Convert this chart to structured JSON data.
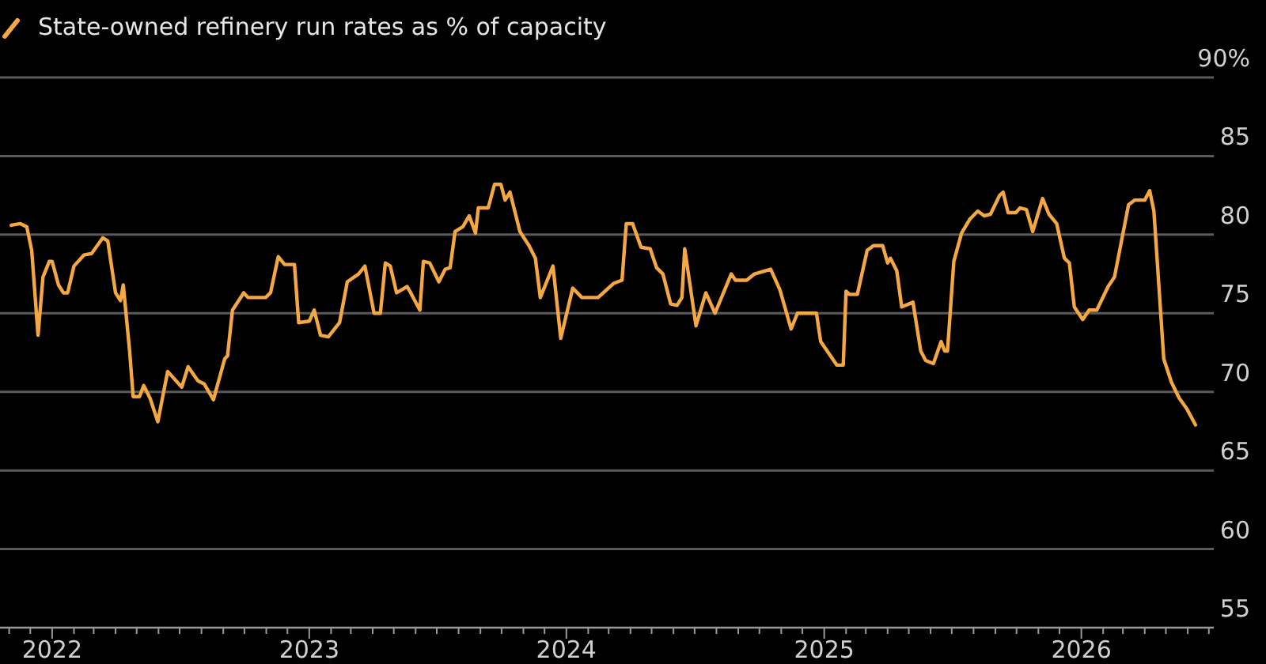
{
  "chart_data": {
    "type": "line",
    "legend": "top left",
    "grid": "y",
    "ylim": [
      55,
      90
    ],
    "yticks": [
      55,
      60,
      65,
      70,
      75,
      80,
      85,
      {
        "value": 90,
        "label": "90%"
      }
    ],
    "xlim": [
      "2021-10-19",
      "2026-07-08"
    ],
    "xticks": [
      {
        "value": "2021-11-01",
        "label": null
      },
      {
        "value": "2021-12-01",
        "label": null
      },
      {
        "value": "2022-01-01",
        "label": "2022"
      },
      {
        "value": "2022-02-01",
        "label": null
      },
      {
        "value": "2022-03-01",
        "label": null
      },
      {
        "value": "2022-04-01",
        "label": null
      },
      {
        "value": "2022-05-01",
        "label": null
      },
      {
        "value": "2022-06-01",
        "label": null
      },
      {
        "value": "2022-07-01",
        "label": null
      },
      {
        "value": "2022-08-01",
        "label": null
      },
      {
        "value": "2022-09-01",
        "label": null
      },
      {
        "value": "2022-10-01",
        "label": null
      },
      {
        "value": "2022-11-01",
        "label": null
      },
      {
        "value": "2022-12-01",
        "label": null
      },
      {
        "value": "2023-01-01",
        "label": "2023"
      },
      {
        "value": "2023-02-01",
        "label": null
      },
      {
        "value": "2023-03-01",
        "label": null
      },
      {
        "value": "2023-04-01",
        "label": null
      },
      {
        "value": "2023-05-01",
        "label": null
      },
      {
        "value": "2023-06-01",
        "label": null
      },
      {
        "value": "2023-07-01",
        "label": null
      },
      {
        "value": "2023-08-01",
        "label": null
      },
      {
        "value": "2023-09-01",
        "label": null
      },
      {
        "value": "2023-10-01",
        "label": null
      },
      {
        "value": "2023-11-01",
        "label": null
      },
      {
        "value": "2023-12-01",
        "label": null
      },
      {
        "value": "2024-01-01",
        "label": "2024"
      },
      {
        "value": "2024-02-01",
        "label": null
      },
      {
        "value": "2024-03-01",
        "label": null
      },
      {
        "value": "2024-04-01",
        "label": null
      },
      {
        "value": "2024-05-01",
        "label": null
      },
      {
        "value": "2024-06-01",
        "label": null
      },
      {
        "value": "2024-07-01",
        "label": null
      },
      {
        "value": "2024-08-01",
        "label": null
      },
      {
        "value": "2024-09-01",
        "label": null
      },
      {
        "value": "2024-10-01",
        "label": null
      },
      {
        "value": "2024-11-01",
        "label": null
      },
      {
        "value": "2024-12-01",
        "label": null
      },
      {
        "value": "2025-01-01",
        "label": "2025"
      },
      {
        "value": "2025-02-01",
        "label": null
      },
      {
        "value": "2025-03-01",
        "label": null
      },
      {
        "value": "2025-04-01",
        "label": null
      },
      {
        "value": "2025-05-01",
        "label": null
      },
      {
        "value": "2025-06-01",
        "label": null
      },
      {
        "value": "2025-07-01",
        "label": null
      },
      {
        "value": "2025-08-01",
        "label": null
      },
      {
        "value": "2025-09-01",
        "label": null
      },
      {
        "value": "2025-10-01",
        "label": null
      },
      {
        "value": "2025-11-01",
        "label": null
      },
      {
        "value": "2025-12-01",
        "label": null
      },
      {
        "value": "2026-01-01",
        "label": "2026"
      },
      {
        "value": "2026-02-01",
        "label": null
      },
      {
        "value": "2026-03-01",
        "label": null
      },
      {
        "value": "2026-04-01",
        "label": null
      },
      {
        "value": "2026-05-01",
        "label": null
      },
      {
        "value": "2026-06-01",
        "label": null
      },
      {
        "value": "2026-07-01",
        "label": null
      }
    ],
    "series": [
      {
        "name": "State-owned refinery run rates as % of capacity",
        "color": "#f5a742",
        "x": [
          "2021-11-04",
          "2021-11-17",
          "2021-11-26",
          "2021-12-03",
          "2021-12-12",
          "2021-12-19",
          "2021-12-28",
          "2022-01-01",
          "2022-01-10",
          "2022-01-17",
          "2022-01-23",
          "2022-02-01",
          "2022-02-15",
          "2022-02-26",
          "2022-03-14",
          "2022-03-21",
          "2022-04-01",
          "2022-04-08",
          "2022-04-12",
          "2022-04-21",
          "2022-04-26",
          "2022-05-05",
          "2022-05-11",
          "2022-05-20",
          "2022-05-31",
          "2022-06-14",
          "2022-07-04",
          "2022-07-13",
          "2022-07-27",
          "2022-08-05",
          "2022-08-18",
          "2022-09-03",
          "2022-09-07",
          "2022-09-14",
          "2022-09-30",
          "2022-10-06",
          "2022-10-31",
          "2022-11-07",
          "2022-11-18",
          "2022-11-27",
          "2022-12-11",
          "2022-12-17",
          "2023-01-01",
          "2023-01-08",
          "2023-01-17",
          "2023-01-28",
          "2023-02-13",
          "2023-02-24",
          "2023-03-12",
          "2023-03-21",
          "2023-04-03",
          "2023-04-12",
          "2023-04-19",
          "2023-04-26",
          "2023-05-05",
          "2023-05-20",
          "2023-05-25",
          "2023-06-07",
          "2023-06-12",
          "2023-06-21",
          "2023-07-04",
          "2023-07-13",
          "2023-07-20",
          "2023-07-27",
          "2023-08-07",
          "2023-08-16",
          "2023-08-25",
          "2023-08-29",
          "2023-09-12",
          "2023-09-21",
          "2023-09-30",
          "2023-10-06",
          "2023-10-13",
          "2023-10-27",
          "2023-11-09",
          "2023-11-18",
          "2023-11-25",
          "2023-12-13",
          "2023-12-24",
          "2024-01-10",
          "2024-01-23",
          "2024-02-15",
          "2024-03-08",
          "2024-03-20",
          "2024-03-26",
          "2024-04-04",
          "2024-04-16",
          "2024-04-29",
          "2024-05-08",
          "2024-05-17",
          "2024-05-28",
          "2024-06-06",
          "2024-06-13",
          "2024-06-17",
          "2024-07-03",
          "2024-07-17",
          "2024-07-30",
          "2024-08-22",
          "2024-08-28",
          "2024-09-13",
          "2024-09-24",
          "2024-10-17",
          "2024-10-30",
          "2024-11-15",
          "2024-11-24",
          "2024-12-21",
          "2024-12-27",
          "2025-01-19",
          "2025-01-28",
          "2025-02-01",
          "2025-02-06",
          "2025-02-17",
          "2025-03-03",
          "2025-03-12",
          "2025-03-25",
          "2025-04-01",
          "2025-04-05",
          "2025-04-14",
          "2025-04-21",
          "2025-05-07",
          "2025-05-18",
          "2025-05-25",
          "2025-06-05",
          "2025-06-16",
          "2025-06-21",
          "2025-06-25",
          "2025-07-04",
          "2025-07-15",
          "2025-07-27",
          "2025-08-07",
          "2025-08-16",
          "2025-08-25",
          "2025-09-07",
          "2025-09-12",
          "2025-09-19",
          "2025-09-30",
          "2025-10-06",
          "2025-10-15",
          "2025-10-24",
          "2025-11-07",
          "2025-11-16",
          "2025-11-27",
          "2025-12-08",
          "2025-12-15",
          "2025-12-22",
          "2026-01-03",
          "2026-01-12",
          "2026-01-23",
          "2026-02-08",
          "2026-02-17",
          "2026-03-09",
          "2026-03-18",
          "2026-04-01",
          "2026-04-08",
          "2026-04-14",
          "2026-04-28",
          "2026-05-09",
          "2026-05-20",
          "2026-05-31",
          "2026-06-12"
        ],
        "values": [
          80.6,
          80.7,
          80.5,
          79,
          73.6,
          77.3,
          78.3,
          78.3,
          76.8,
          76.3,
          76.3,
          78,
          78.7,
          78.8,
          79.8,
          79.6,
          76.3,
          75.8,
          76.8,
          72.6,
          69.7,
          69.7,
          70.4,
          69.6,
          68.1,
          71.3,
          70.3,
          71.6,
          70.7,
          70.5,
          69.5,
          72.1,
          72.3,
          75.2,
          76.3,
          76,
          76,
          76.3,
          78.6,
          78.1,
          78.1,
          74.4,
          74.5,
          75.2,
          73.6,
          73.5,
          74.4,
          77,
          77.5,
          78,
          75,
          75,
          78.2,
          78,
          76.3,
          76.7,
          76.3,
          75.2,
          78.3,
          78.2,
          77,
          77.8,
          77.9,
          80.2,
          80.5,
          81.2,
          80.1,
          81.7,
          81.7,
          83.2,
          83.2,
          82.2,
          82.7,
          80.2,
          79.3,
          78.5,
          76,
          78,
          73.4,
          76.6,
          76,
          76,
          76.9,
          77.1,
          80.7,
          80.7,
          79.2,
          79.1,
          77.9,
          77.5,
          75.6,
          75.5,
          76,
          79.1,
          74.2,
          76.3,
          75,
          77.5,
          77.1,
          77.1,
          77.5,
          77.8,
          76.5,
          74,
          75,
          75,
          73.2,
          71.7,
          71.7,
          76.4,
          76.2,
          76.2,
          79,
          79.3,
          79.3,
          78.2,
          78.5,
          77.7,
          75.4,
          75.7,
          72.6,
          72,
          71.8,
          73.2,
          72.6,
          72.6,
          78.3,
          80.1,
          81,
          81.5,
          81.2,
          81.3,
          82.5,
          82.7,
          81.4,
          81.4,
          81.7,
          81.6,
          80.2,
          82.3,
          81.3,
          80.7,
          78.5,
          78.2,
          75.4,
          74.6,
          75.2,
          75.2,
          76.7,
          77.3,
          81.9,
          82.2,
          82.2,
          82.8,
          81.5,
          72.1,
          70.6,
          69.6,
          68.9,
          67.9
        ]
      }
    ]
  }
}
